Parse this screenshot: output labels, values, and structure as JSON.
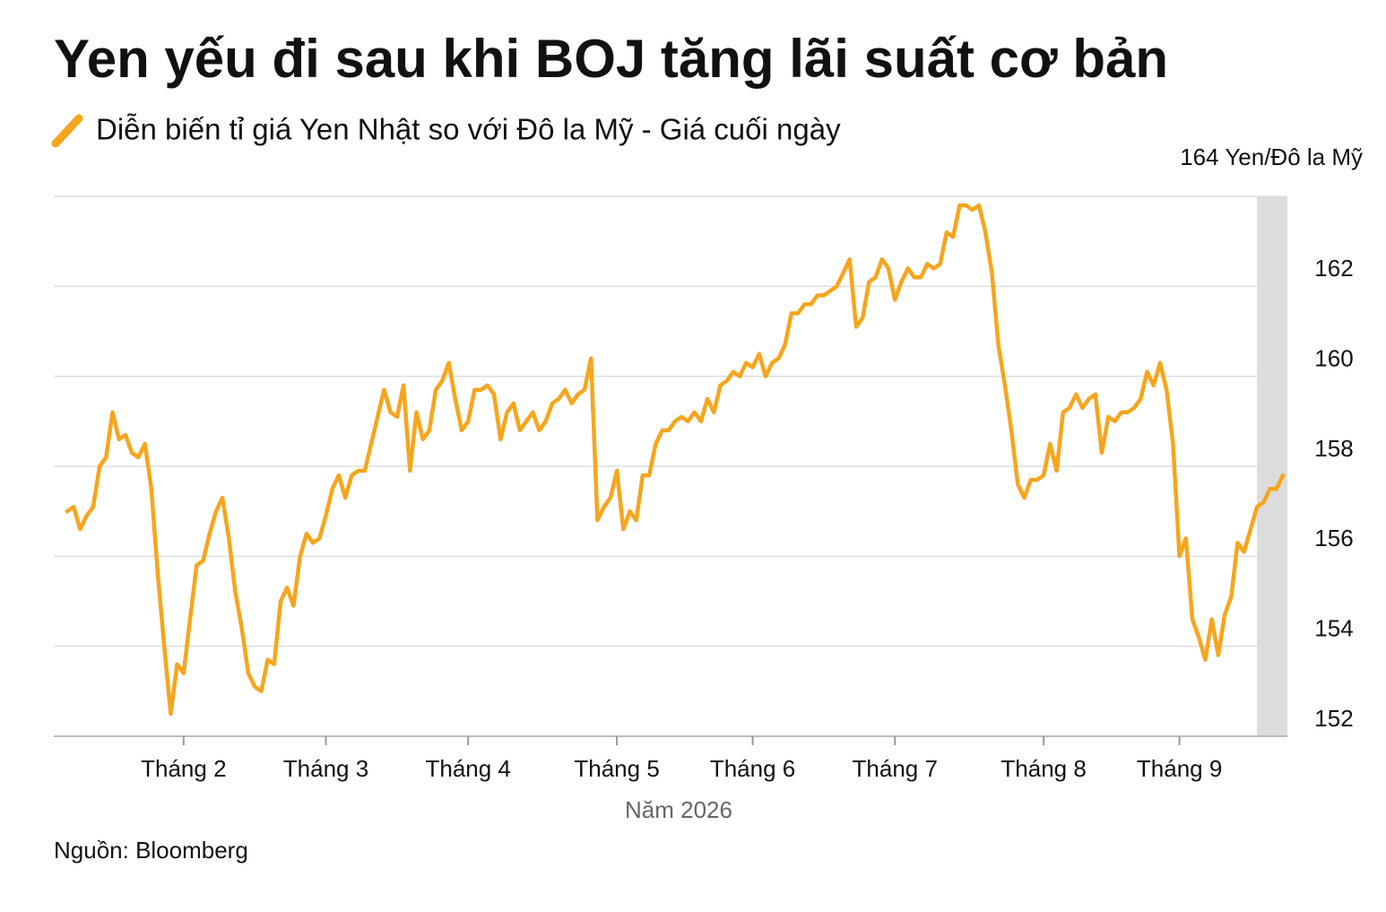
{
  "chart_data": {
    "type": "line",
    "title": "Yen yếu đi sau khi BOJ tăng lãi suất cơ bản",
    "subtitle": "Diễn biến tỉ giá Yen Nhật so với Đô la Mỹ - Giá cuối ngày",
    "x_label": "Năm 2026",
    "source": "Nguồn: Bloomberg",
    "color": "#f7a51c",
    "grid": true,
    "ylim": [
      152,
      164
    ],
    "yticks": [
      {
        "value": 164,
        "label": "164 Yen/Đô la Mỹ"
      },
      162,
      160,
      158,
      156,
      154,
      152
    ],
    "categories": [
      null,
      null,
      null,
      null,
      null,
      null,
      null,
      null,
      null,
      null,
      null,
      null,
      null,
      null,
      null,
      null,
      null,
      null,
      "Tháng 2",
      null,
      null,
      null,
      null,
      null,
      null,
      null,
      null,
      null,
      null,
      null,
      null,
      null,
      null,
      null,
      null,
      null,
      null,
      null,
      null,
      null,
      "Tháng 3",
      null,
      null,
      null,
      null,
      null,
      null,
      null,
      null,
      null,
      null,
      null,
      null,
      null,
      null,
      null,
      null,
      null,
      null,
      null,
      null,
      null,
      "Tháng 4",
      null,
      null,
      null,
      null,
      null,
      null,
      null,
      null,
      null,
      null,
      null,
      null,
      null,
      null,
      null,
      null,
      null,
      null,
      null,
      null,
      null,
      null,
      "Tháng 5",
      null,
      null,
      null,
      null,
      null,
      null,
      null,
      null,
      null,
      null,
      null,
      null,
      null,
      null,
      null,
      null,
      null,
      null,
      null,
      null,
      "Tháng 6",
      null,
      null,
      null,
      null,
      null,
      null,
      null,
      null,
      null,
      null,
      null,
      null,
      null,
      null,
      null,
      null,
      null,
      null,
      null,
      null,
      null,
      "Tháng 7",
      null,
      null,
      null,
      null,
      null,
      null,
      null,
      null,
      null,
      null,
      null,
      null,
      null,
      null,
      null,
      null,
      null,
      null,
      null,
      null,
      null,
      null,
      "Tháng 8",
      null,
      null,
      null,
      null,
      null,
      null,
      null,
      null,
      null,
      null,
      null,
      null,
      null,
      null,
      null,
      null,
      null,
      null,
      null,
      null,
      "Tháng 9",
      null,
      null,
      null,
      null,
      null,
      null,
      null,
      null,
      null,
      null,
      null,
      null,
      null,
      null,
      null,
      null
    ],
    "values": [
      157.0,
      157.1,
      156.6,
      156.9,
      157.1,
      158.0,
      158.2,
      159.2,
      158.6,
      158.7,
      158.3,
      158.2,
      158.5,
      157.5,
      155.6,
      154.0,
      152.5,
      153.6,
      153.4,
      154.6,
      155.8,
      155.9,
      156.5,
      157.0,
      157.3,
      156.4,
      155.2,
      154.4,
      153.4,
      153.1,
      153.0,
      153.7,
      153.6,
      155.0,
      155.3,
      154.9,
      156.0,
      156.5,
      156.3,
      156.4,
      156.9,
      157.5,
      157.8,
      157.3,
      157.8,
      157.9,
      157.9,
      158.5,
      159.1,
      159.7,
      159.2,
      159.1,
      159.8,
      157.9,
      159.2,
      158.6,
      158.8,
      159.7,
      159.9,
      160.3,
      159.5,
      158.8,
      159.0,
      159.7,
      159.7,
      159.8,
      159.6,
      158.6,
      159.2,
      159.4,
      158.8,
      159.0,
      159.2,
      158.8,
      159.0,
      159.4,
      159.5,
      159.7,
      159.4,
      159.6,
      159.7,
      160.4,
      156.8,
      157.1,
      157.3,
      157.9,
      156.6,
      157.0,
      156.8,
      157.8,
      157.8,
      158.5,
      158.8,
      158.8,
      159.0,
      159.1,
      159.0,
      159.2,
      159.0,
      159.5,
      159.2,
      159.8,
      159.9,
      160.1,
      160.0,
      160.3,
      160.2,
      160.5,
      160.0,
      160.3,
      160.4,
      160.7,
      161.4,
      161.4,
      161.6,
      161.6,
      161.8,
      161.8,
      161.9,
      162.0,
      162.3,
      162.6,
      161.1,
      161.3,
      162.1,
      162.2,
      162.6,
      162.4,
      161.7,
      162.1,
      162.4,
      162.2,
      162.2,
      162.5,
      162.4,
      162.5,
      163.2,
      163.1,
      163.8,
      163.8,
      163.7,
      163.8,
      163.2,
      162.3,
      160.7,
      159.8,
      158.8,
      157.6,
      157.3,
      157.7,
      157.7,
      157.8,
      158.5,
      157.9,
      159.2,
      159.3,
      159.6,
      159.3,
      159.5,
      159.6,
      158.3,
      159.1,
      159.0,
      159.2,
      159.2,
      159.3,
      159.5,
      160.1,
      159.8,
      160.3,
      159.7,
      158.5,
      156.0,
      156.4,
      154.6,
      154.2,
      153.7,
      154.6,
      153.8,
      154.7,
      155.1,
      156.3,
      156.1,
      156.6,
      157.1,
      157.2,
      157.5,
      157.5,
      157.8
    ]
  }
}
